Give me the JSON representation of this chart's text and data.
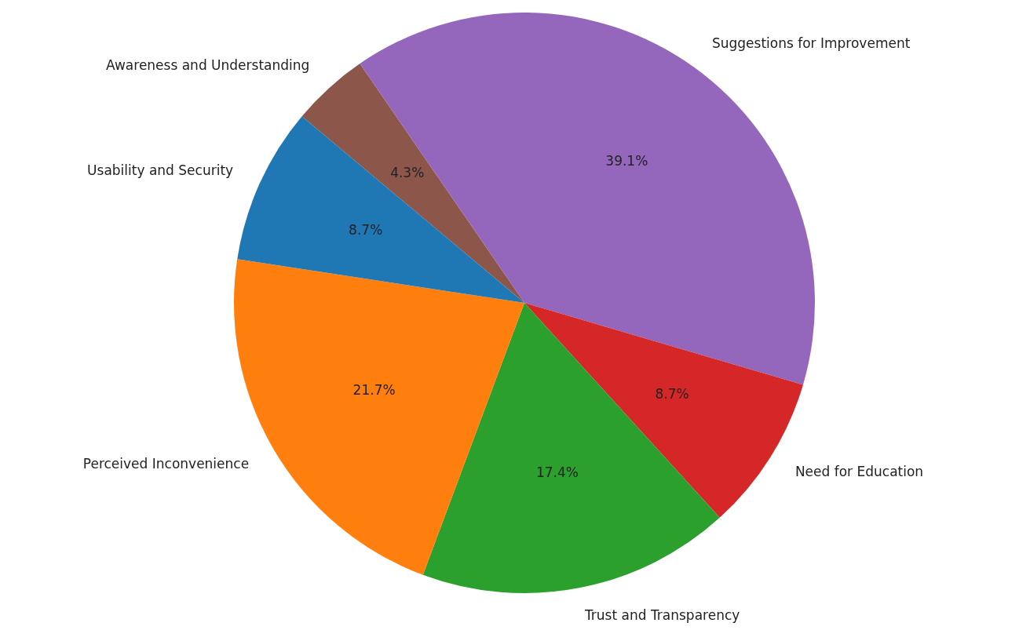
{
  "chart_data": {
    "type": "pie",
    "categories": [
      "Usability and Security",
      "Perceived Inconvenience",
      "Trust and Transparency",
      "Need for Education",
      "Suggestions for Improvement",
      "Awareness and Understanding"
    ],
    "values": [
      8.7,
      21.7,
      17.4,
      8.7,
      39.1,
      4.3
    ],
    "value_labels": [
      "8.7%",
      "21.7%",
      "17.4%",
      "8.7%",
      "39.1%",
      "4.3%"
    ],
    "colors": [
      "#1f77b4",
      "#ff7f0e",
      "#2ca02c",
      "#d62728",
      "#9467bd",
      "#8c564b"
    ],
    "legend": false
  }
}
